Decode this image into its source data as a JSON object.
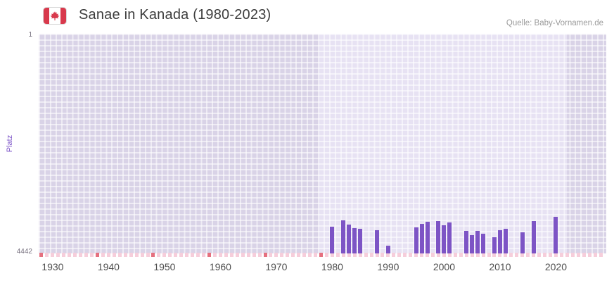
{
  "header": {
    "title": "Sanae in Kanada (1980-2023)",
    "source": "Quelle: Baby-Vornamen.de",
    "flag_icon": "canada-flag"
  },
  "chart_data": {
    "type": "bar",
    "title": "Sanae in Kanada (1980-2023)",
    "xlabel": "",
    "ylabel": "Platz",
    "y_axis": {
      "min": 1,
      "max": 4442,
      "top_label": "1",
      "bottom_label": "4442",
      "inverted": true
    },
    "x_axis": {
      "min": 1927.5,
      "max": 2029,
      "ticks": [
        1930,
        1940,
        1950,
        1960,
        1970,
        1980,
        1990,
        2000,
        2010,
        2020
      ]
    },
    "highlight_range": [
      1977.5,
      2022
    ],
    "bar_color": "#7d54c5",
    "plot_colors": {
      "inside_range": "#e7e2f3",
      "outside_range": "#d9d3e7",
      "grid": "rgba(255,255,255,0.55)"
    },
    "legend": "none",
    "series": [
      {
        "name": "Platz",
        "points": [
          {
            "year": 1980,
            "rank": 3900
          },
          {
            "year": 1982,
            "rank": 3770
          },
          {
            "year": 1983,
            "rank": 3860
          },
          {
            "year": 1984,
            "rank": 3930
          },
          {
            "year": 1985,
            "rank": 3940
          },
          {
            "year": 1988,
            "rank": 3970
          },
          {
            "year": 1990,
            "rank": 4290
          },
          {
            "year": 1995,
            "rank": 3910
          },
          {
            "year": 1996,
            "rank": 3850
          },
          {
            "year": 1997,
            "rank": 3800
          },
          {
            "year": 1999,
            "rank": 3790
          },
          {
            "year": 2000,
            "rank": 3870
          },
          {
            "year": 2001,
            "rank": 3810
          },
          {
            "year": 2004,
            "rank": 3990
          },
          {
            "year": 2005,
            "rank": 4070
          },
          {
            "year": 2006,
            "rank": 3990
          },
          {
            "year": 2007,
            "rank": 4040
          },
          {
            "year": 2009,
            "rank": 4110
          },
          {
            "year": 2010,
            "rank": 3970
          },
          {
            "year": 2011,
            "rank": 3940
          },
          {
            "year": 2014,
            "rank": 4010
          },
          {
            "year": 2016,
            "rank": 3790
          },
          {
            "year": 2020,
            "rank": 3700
          }
        ]
      }
    ],
    "marker_strip": {
      "years_range": [
        1928,
        2028
      ],
      "strong_years": [
        1928,
        1938,
        1948,
        1958,
        1968,
        1978
      ],
      "light_color": "#f6cedb",
      "strong_color": "#e5707f"
    }
  }
}
